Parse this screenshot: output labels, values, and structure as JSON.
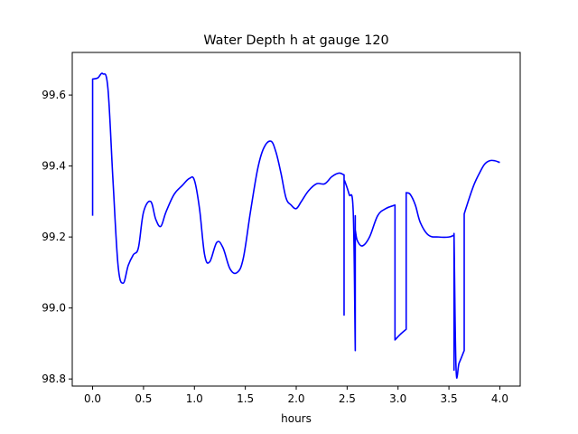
{
  "chart_data": {
    "type": "line",
    "title": "Water Depth h at gauge 120",
    "xlabel": "hours",
    "ylabel": "",
    "xlim": [
      -0.2,
      4.2
    ],
    "ylim": [
      98.78,
      99.72
    ],
    "grid": false,
    "legend": "none",
    "x_ticks": [
      0.0,
      0.5,
      1.0,
      1.5,
      2.0,
      2.5,
      3.0,
      3.5,
      4.0
    ],
    "x_tick_labels": [
      "0.0",
      "0.5",
      "1.0",
      "1.5",
      "2.0",
      "2.5",
      "3.0",
      "3.5",
      "4.0"
    ],
    "y_ticks": [
      98.8,
      99.0,
      99.2,
      99.4,
      99.6
    ],
    "y_tick_labels": [
      "98.8",
      "99.0",
      "99.2",
      "99.4",
      "99.6"
    ],
    "series": [
      {
        "color": "#0000ff",
        "x": [
          0.0,
          0.0,
          0.05,
          0.1,
          0.15,
          0.2,
          0.25,
          0.3,
          0.35,
          0.4,
          0.45,
          0.5,
          0.57,
          0.62,
          0.67,
          0.72,
          0.8,
          0.88,
          0.95,
          1.0,
          1.05,
          1.1,
          1.15,
          1.22,
          1.28,
          1.35,
          1.42,
          1.48,
          1.55,
          1.62,
          1.68,
          1.75,
          1.8,
          1.85,
          1.9,
          1.95,
          2.0,
          2.05,
          2.12,
          2.2,
          2.28,
          2.35,
          2.42,
          2.47,
          2.47,
          2.47,
          2.48,
          2.52,
          2.56,
          2.58,
          2.58,
          2.58,
          2.6,
          2.65,
          2.72,
          2.8,
          2.88,
          2.97,
          2.97,
          2.97,
          3.02,
          3.08,
          3.08,
          3.12,
          3.17,
          3.22,
          3.3,
          3.4,
          3.5,
          3.55,
          3.55,
          3.55,
          3.57,
          3.6,
          3.65,
          3.65,
          3.7,
          3.75,
          3.8,
          3.85,
          3.9,
          3.95,
          4.0
        ],
        "y": [
          99.26,
          99.645,
          99.648,
          99.66,
          99.62,
          99.36,
          99.12,
          99.07,
          99.12,
          99.15,
          99.17,
          99.27,
          99.3,
          99.25,
          99.23,
          99.27,
          99.32,
          99.345,
          99.365,
          99.36,
          99.28,
          99.15,
          99.13,
          99.185,
          99.17,
          99.11,
          99.1,
          99.14,
          99.27,
          99.39,
          99.45,
          99.47,
          99.44,
          99.38,
          99.31,
          99.29,
          99.28,
          99.3,
          99.33,
          99.35,
          99.35,
          99.37,
          99.38,
          99.375,
          98.98,
          99.36,
          99.355,
          99.32,
          99.27,
          98.88,
          99.26,
          99.22,
          99.19,
          99.175,
          99.2,
          99.26,
          99.28,
          99.29,
          98.91,
          98.91,
          98.925,
          98.94,
          99.325,
          99.32,
          99.29,
          99.24,
          99.205,
          99.2,
          99.2,
          99.205,
          98.825,
          99.21,
          98.83,
          98.845,
          98.88,
          99.265,
          99.31,
          99.35,
          99.38,
          99.405,
          99.415,
          99.415,
          99.41
        ]
      }
    ]
  }
}
